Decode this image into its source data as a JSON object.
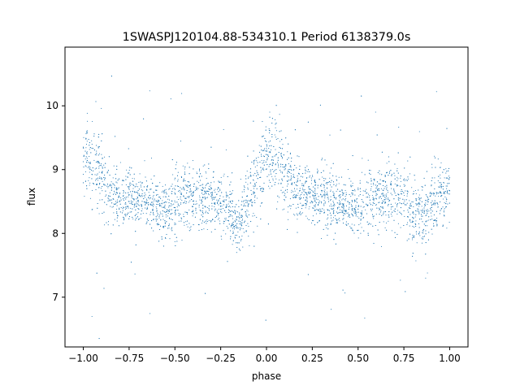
{
  "chart_data": {
    "type": "scatter",
    "title": "1SWASPJ120104.88-534310.1 Period 6138379.0s",
    "xlabel": "phase",
    "ylabel": "flux",
    "xlim": [
      -1.1,
      1.1
    ],
    "ylim": [
      6.22,
      10.92
    ],
    "xticks": [
      -1.0,
      -0.75,
      -0.5,
      -0.25,
      0.0,
      0.25,
      0.5,
      0.75,
      1.0
    ],
    "xtick_labels": [
      "−1.00",
      "−0.75",
      "−0.50",
      "−0.25",
      "0.00",
      "0.25",
      "0.50",
      "0.75",
      "1.00"
    ],
    "yticks": [
      7,
      8,
      9,
      10
    ],
    "ytick_labels": [
      "7",
      "8",
      "9",
      "10"
    ],
    "grid": false,
    "legend": "none",
    "marker_color": "#1f77b4",
    "series": [
      {
        "phase_profile": {
          "x": [
            -1.0,
            -0.95,
            -0.9,
            -0.85,
            -0.8,
            -0.75,
            -0.7,
            -0.65,
            -0.6,
            -0.55,
            -0.5,
            -0.45,
            -0.4,
            -0.35,
            -0.3,
            -0.25,
            -0.2,
            -0.15,
            -0.1,
            -0.05,
            0.0,
            0.05,
            0.1,
            0.15,
            0.2,
            0.25,
            0.3,
            0.35,
            0.4,
            0.45,
            0.5,
            0.55,
            0.6,
            0.65,
            0.7,
            0.75,
            0.8,
            0.85,
            0.9,
            0.95,
            1.0
          ],
          "median_flux": [
            9.1,
            9.05,
            8.85,
            8.6,
            8.55,
            8.55,
            8.55,
            8.45,
            8.4,
            8.35,
            8.5,
            8.6,
            8.55,
            8.55,
            8.6,
            8.45,
            8.3,
            8.15,
            8.5,
            8.9,
            9.2,
            9.2,
            8.95,
            8.7,
            8.6,
            8.6,
            8.6,
            8.5,
            8.45,
            8.4,
            8.45,
            8.55,
            8.55,
            8.55,
            8.6,
            8.55,
            8.35,
            8.25,
            8.5,
            8.6,
            8.7
          ],
          "spread": [
            0.5,
            0.5,
            0.4,
            0.35,
            0.35,
            0.3,
            0.3,
            0.3,
            0.3,
            0.35,
            0.4,
            0.35,
            0.35,
            0.35,
            0.35,
            0.35,
            0.35,
            0.4,
            0.45,
            0.5,
            0.5,
            0.5,
            0.4,
            0.35,
            0.3,
            0.3,
            0.35,
            0.35,
            0.3,
            0.3,
            0.35,
            0.35,
            0.35,
            0.35,
            0.35,
            0.35,
            0.4,
            0.4,
            0.4,
            0.45,
            0.4
          ]
        }
      }
    ]
  }
}
